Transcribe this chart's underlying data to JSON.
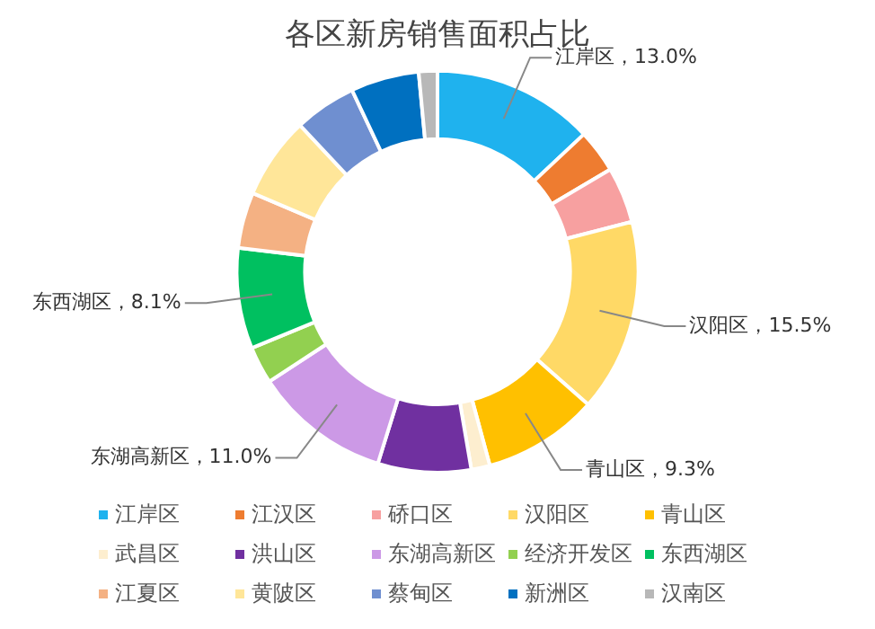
{
  "chart_data": {
    "type": "donut",
    "title": "各区新房销售面积占比",
    "categories": [
      "江岸区",
      "江汉区",
      "硚口区",
      "汉阳区",
      "青山区",
      "武昌区",
      "洪山区",
      "东湖高新区",
      "经济开发区",
      "东西湖区",
      "江夏区",
      "黄陂区",
      "蔡甸区",
      "新洲区",
      "汉南区"
    ],
    "values": [
      13.0,
      3.5,
      4.5,
      15.5,
      9.3,
      1.5,
      7.5,
      11.0,
      3.0,
      8.1,
      4.5,
      6.6,
      5.0,
      5.5,
      1.5
    ],
    "colors": [
      "#1fb2ee",
      "#ee7c30",
      "#f7a0a0",
      "#ffd966",
      "#ffc000",
      "#fdeecf",
      "#7030a0",
      "#cc99e6",
      "#92d050",
      "#00c060",
      "#f4b183",
      "#ffe699",
      "#6f8fd0",
      "#0070c0",
      "#b8b8b8"
    ],
    "value_labels": [
      "江岸区，13.0%",
      null,
      null,
      "汉阳区，15.5%",
      "青山区，9.3%",
      null,
      null,
      "东湖高新区，11.0%",
      null,
      "东西湖区，8.1%",
      null,
      null,
      null,
      null,
      null
    ],
    "legend": "bottom"
  }
}
